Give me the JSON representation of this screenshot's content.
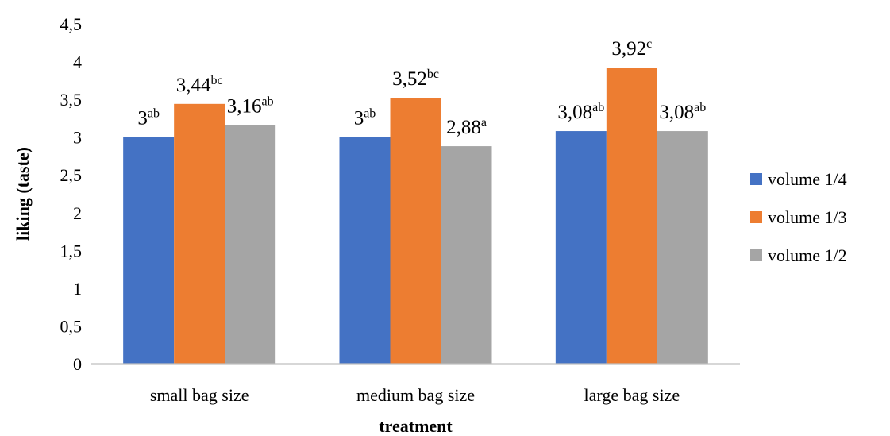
{
  "chart_data": {
    "type": "bar",
    "title": "",
    "xlabel": "treatment",
    "ylabel": "liking (taste)",
    "categories": [
      "small bag size",
      "medium bag size",
      "large bag size"
    ],
    "series": [
      {
        "name": "volume 1/4",
        "color": "#4472C4",
        "values": [
          3,
          3,
          3.08
        ],
        "labels": [
          "3",
          "3",
          "3,08"
        ],
        "letters": [
          "ab",
          "ab",
          "ab"
        ]
      },
      {
        "name": "volume 1/3",
        "color": "#ED7D31",
        "values": [
          3.44,
          3.52,
          3.92
        ],
        "labels": [
          "3,44",
          "3,52",
          "3,92"
        ],
        "letters": [
          "bc",
          "bc",
          "c"
        ]
      },
      {
        "name": "volume 1/2",
        "color": "#A5A5A5",
        "values": [
          3.16,
          2.88,
          3.08
        ],
        "labels": [
          "3,16",
          "2,88",
          "3,08"
        ],
        "letters": [
          "ab",
          "a",
          "ab"
        ]
      }
    ],
    "ylim": [
      0,
      4.5
    ],
    "yticks": [
      "0",
      "0,5",
      "1",
      "1,5",
      "2",
      "2,5",
      "3",
      "3,5",
      "4",
      "4,5"
    ],
    "grid": false,
    "legend_position": "right"
  }
}
